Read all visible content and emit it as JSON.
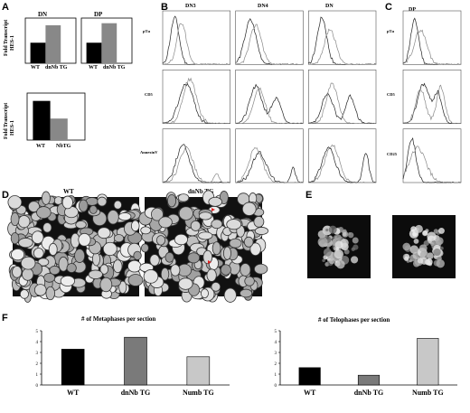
{
  "panels": {
    "A": "A",
    "B": "B",
    "C": "C",
    "D": "D",
    "E": "E",
    "F": "F"
  },
  "panel_a": {
    "top_left": {
      "title": "DN",
      "categories": [
        "WT",
        "dnNb TG"
      ],
      "values": [
        1.0,
        1.85
      ],
      "ylim": [
        0,
        2.2
      ],
      "colors": [
        "#000000",
        "#888888"
      ]
    },
    "top_right": {
      "title": "DP",
      "categories": [
        "WT",
        "dnNb TG"
      ],
      "values": [
        1.0,
        1.95
      ],
      "ylim": [
        0,
        2.2
      ],
      "colors": [
        "#000000",
        "#888888"
      ]
    },
    "bottom": {
      "ylabel_line1": "Fold Transcript",
      "ylabel_line2": "HES-1",
      "categories": [
        "WT",
        "NbTG"
      ],
      "values": [
        1.0,
        0.55
      ],
      "ylim": [
        0,
        1.2
      ],
      "colors": [
        "#000000",
        "#888888"
      ]
    },
    "top_ylabel_line1": "Fold Transcript",
    "top_ylabel_line2": "HES-1"
  },
  "panel_b": {
    "columns": [
      "DN3",
      "DN4",
      "DN"
    ],
    "rows": [
      "pTα",
      "CD5",
      "AnnexinV"
    ]
  },
  "panel_c": {
    "column": "DP",
    "rows": [
      "pTα",
      "CD5",
      "CD25"
    ]
  },
  "panel_d": {
    "labels": [
      "WT",
      "dnNb TG"
    ]
  },
  "chart_data": [
    {
      "type": "bar",
      "title": "# of Metaphases per section",
      "categories": [
        "WT",
        "dnNb TG",
        "Numb TG"
      ],
      "values": [
        3.3,
        4.4,
        2.6
      ],
      "ylim": [
        0,
        5
      ],
      "yticks": [
        0,
        1,
        2,
        3,
        4,
        5
      ],
      "colors": [
        "#000000",
        "#7a7a7a",
        "#c8c8c8"
      ]
    },
    {
      "type": "bar",
      "title": "# of  Telophases per section",
      "categories": [
        "WT",
        "dnNb TG",
        "Numb TG"
      ],
      "values": [
        1.6,
        0.9,
        4.3
      ],
      "ylim": [
        0,
        5
      ],
      "yticks": [
        0,
        1,
        2,
        3,
        4,
        5
      ],
      "colors": [
        "#000000",
        "#7a7a7a",
        "#c8c8c8"
      ]
    }
  ]
}
